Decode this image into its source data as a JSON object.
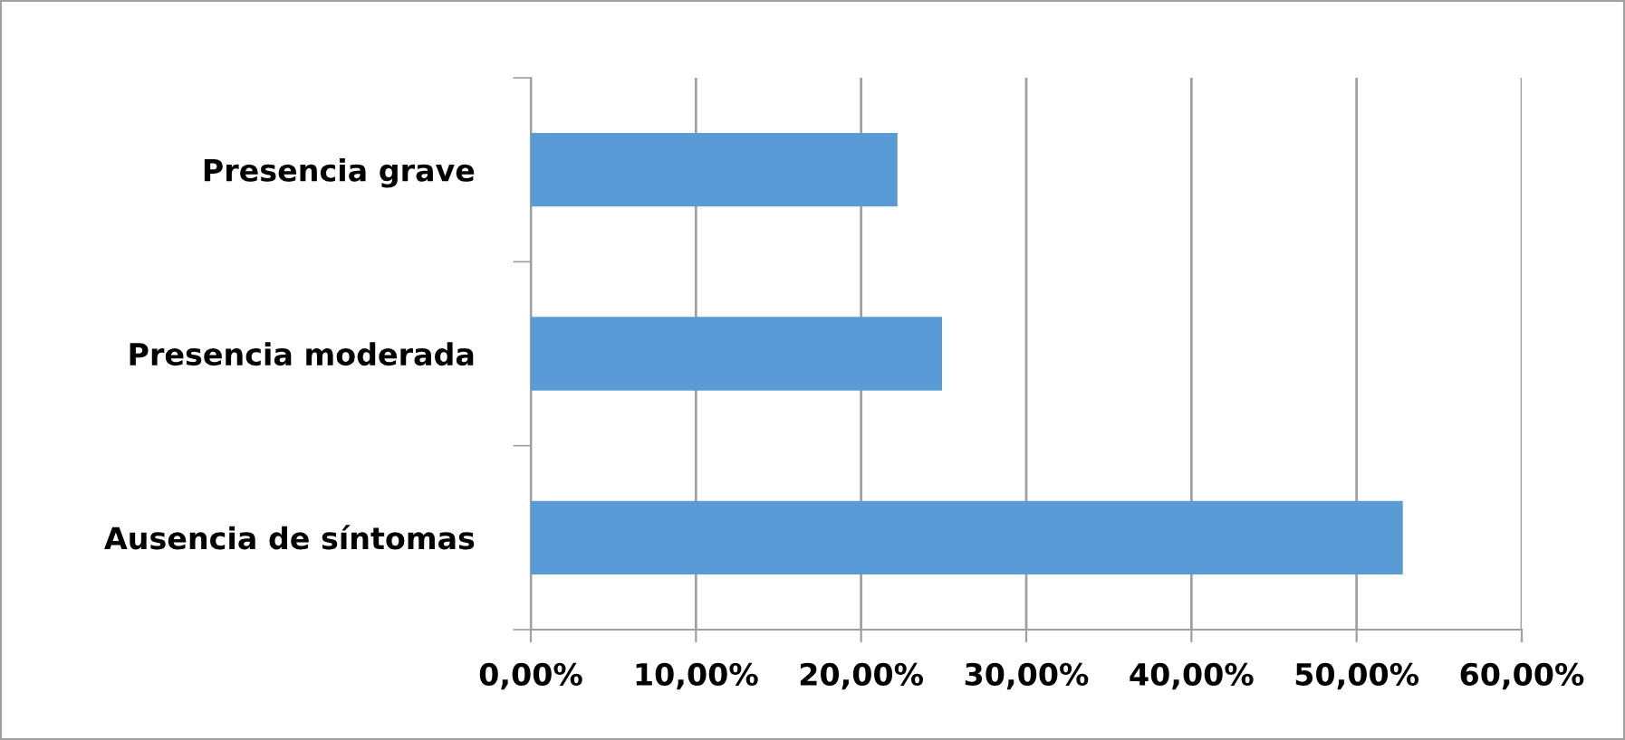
{
  "chart_data": {
    "type": "bar",
    "orientation": "horizontal",
    "categories": [
      "Presencia grave",
      "Presencia moderada",
      "Ausencia de síntomas"
    ],
    "values": [
      22.2,
      24.9,
      52.8
    ],
    "color": "#5b9bd5",
    "xlim": [
      0,
      60
    ],
    "xticks": [
      {
        "value": 0,
        "label": "0,00%"
      },
      {
        "value": 10,
        "label": "10,00%"
      },
      {
        "value": 20,
        "label": "20,00%"
      },
      {
        "value": 30,
        "label": "30,00%"
      },
      {
        "value": 40,
        "label": "40,00%"
      },
      {
        "value": 50,
        "label": "50,00%"
      },
      {
        "value": 60,
        "label": "60,00%"
      }
    ],
    "grid": "x",
    "legend": false
  }
}
